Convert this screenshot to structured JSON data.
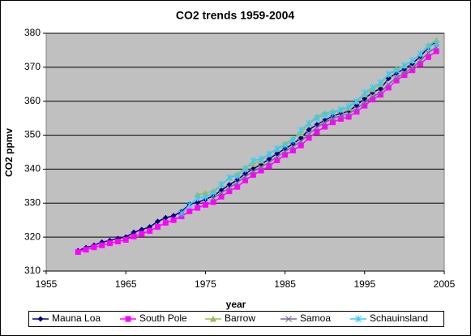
{
  "chart_data": {
    "type": "line",
    "title": "CO2 trends 1959-2004",
    "x_label": "year",
    "y_label": "CO2 ppmv",
    "x": [
      1959,
      1960,
      1961,
      1962,
      1963,
      1964,
      1965,
      1966,
      1967,
      1968,
      1969,
      1970,
      1971,
      1972,
      1973,
      1974,
      1975,
      1976,
      1977,
      1978,
      1979,
      1980,
      1981,
      1982,
      1983,
      1984,
      1985,
      1986,
      1987,
      1988,
      1989,
      1990,
      1991,
      1992,
      1993,
      1994,
      1995,
      1996,
      1997,
      1998,
      1999,
      2000,
      2001,
      2002,
      2003,
      2004
    ],
    "series": [
      {
        "name": "Mauna Loa",
        "color": "#000080",
        "marker": "diamond",
        "values": [
          316.0,
          316.9,
          317.6,
          318.5,
          319.0,
          319.6,
          320.0,
          321.4,
          322.2,
          323.0,
          324.6,
          325.7,
          326.3,
          327.5,
          329.7,
          330.2,
          331.1,
          332.1,
          333.8,
          335.4,
          336.8,
          338.7,
          340.1,
          341.4,
          343.0,
          344.6,
          346.0,
          347.4,
          349.2,
          351.6,
          353.1,
          354.4,
          355.6,
          356.4,
          357.1,
          358.8,
          360.8,
          362.6,
          363.7,
          366.7,
          368.3,
          369.5,
          371.1,
          373.2,
          375.8,
          377.5
        ]
      },
      {
        "name": "South Pole",
        "color": "#ff00ff",
        "marker": "square",
        "values": [
          315.6,
          316.3,
          317.0,
          317.6,
          318.2,
          318.7,
          319.2,
          320.2,
          321.0,
          321.8,
          323.0,
          324.2,
          325.0,
          326.1,
          327.6,
          328.6,
          329.5,
          330.3,
          331.9,
          333.5,
          334.8,
          336.7,
          338.3,
          339.6,
          340.9,
          342.6,
          344.2,
          345.5,
          347.0,
          349.2,
          351.0,
          352.5,
          353.8,
          354.8,
          355.4,
          356.9,
          358.7,
          360.5,
          361.9,
          364.0,
          366.1,
          367.7,
          369.1,
          371.0,
          373.0,
          374.7
        ]
      },
      {
        "name": "Barrow",
        "color": "#9bbb59",
        "marker": "triangle",
        "values": [
          null,
          null,
          null,
          null,
          null,
          null,
          null,
          null,
          null,
          null,
          null,
          null,
          null,
          null,
          null,
          332.5,
          333.0,
          333.5,
          335.5,
          337.5,
          338.5,
          340.5,
          341.5,
          342.5,
          344.5,
          346.0,
          347.5,
          349.0,
          350.5,
          353.5,
          355.5,
          356.5,
          357.0,
          357.5,
          358.0,
          360.0,
          362.0,
          363.5,
          365.0,
          368.0,
          369.5,
          370.5,
          372.0,
          374.0,
          376.5,
          378.0
        ]
      },
      {
        "name": "Samoa",
        "color": "#8064a2",
        "marker": "x",
        "values": [
          null,
          null,
          null,
          null,
          null,
          null,
          null,
          null,
          null,
          null,
          null,
          null,
          null,
          null,
          null,
          null,
          null,
          331.5,
          333.0,
          334.5,
          336.0,
          337.8,
          339.3,
          340.6,
          342.0,
          343.6,
          345.2,
          346.6,
          348.2,
          350.3,
          352.3,
          353.7,
          354.9,
          355.7,
          356.3,
          357.8,
          359.6,
          361.3,
          362.6,
          365.0,
          366.9,
          368.3,
          369.8,
          371.9,
          374.3,
          375.9
        ]
      },
      {
        "name": "Schauinsland",
        "color": "#33ccff",
        "marker": "star",
        "values": [
          null,
          null,
          null,
          null,
          null,
          null,
          null,
          null,
          null,
          null,
          null,
          null,
          null,
          327.0,
          329.5,
          331.5,
          331.8,
          333.0,
          335.5,
          337.5,
          338.0,
          340.0,
          342.5,
          343.0,
          344.5,
          346.0,
          347.0,
          348.5,
          351.5,
          353.5,
          355.0,
          356.0,
          356.5,
          357.5,
          358.5,
          360.0,
          362.5,
          364.0,
          365.5,
          368.0,
          369.0,
          370.5,
          372.0,
          374.0,
          376.0,
          377.0
        ]
      }
    ],
    "xlim": [
      1955,
      2005
    ],
    "xticks": [
      1955,
      1965,
      1975,
      1985,
      1995,
      2005
    ],
    "ylim": [
      310,
      380
    ],
    "yticks": [
      310,
      320,
      330,
      340,
      350,
      360,
      370,
      380
    ],
    "grid": true,
    "legend": "bottom",
    "plot_background": "#c0c0c0"
  }
}
